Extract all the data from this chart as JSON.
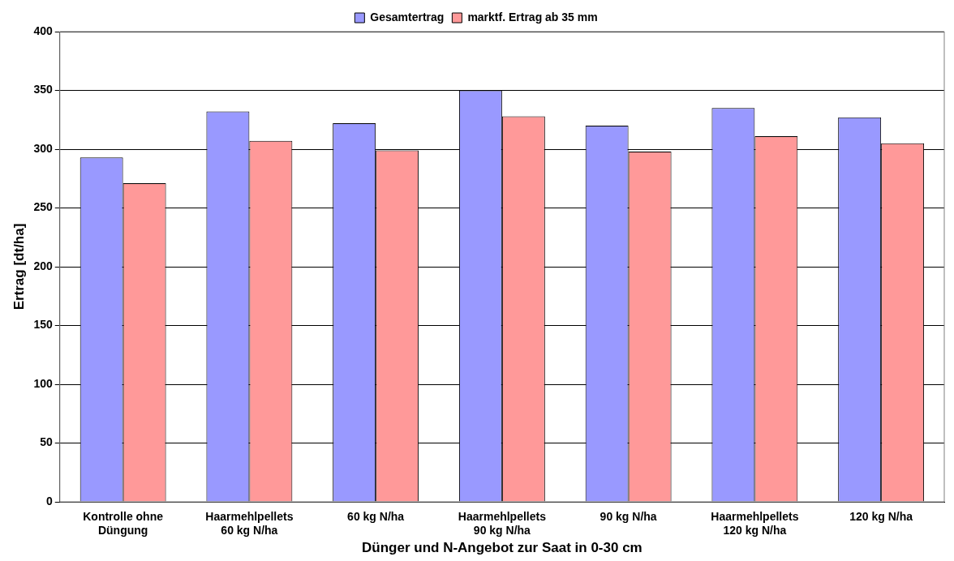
{
  "chart_data": {
    "type": "bar",
    "xlabel": "Dünger und N-Angebot zur Saat in 0-30 cm",
    "ylabel": "Ertrag [dt/ha]",
    "categories": [
      "Kontrolle ohne Düngung",
      "Haarmehlpellets 60 kg N/ha",
      "60 kg N/ha",
      "Haarmehlpellets 90 kg N/ha",
      "90 kg N/ha",
      "Haarmehlpellets 120 kg N/ha",
      "120 kg N/ha"
    ],
    "series": [
      {
        "name": "Gesamtertrag",
        "color": "#9999ff",
        "values": [
          293,
          332,
          322,
          350,
          320,
          335,
          327
        ]
      },
      {
        "name": "marktf. Ertrag ab 35 mm",
        "color": "#ff9999",
        "values": [
          271,
          307,
          299,
          328,
          298,
          311,
          305
        ]
      }
    ],
    "ylim": [
      0,
      400
    ],
    "yticks": [
      0,
      50,
      100,
      150,
      200,
      250,
      300,
      350,
      400
    ],
    "grid": "y",
    "legend": "top"
  }
}
